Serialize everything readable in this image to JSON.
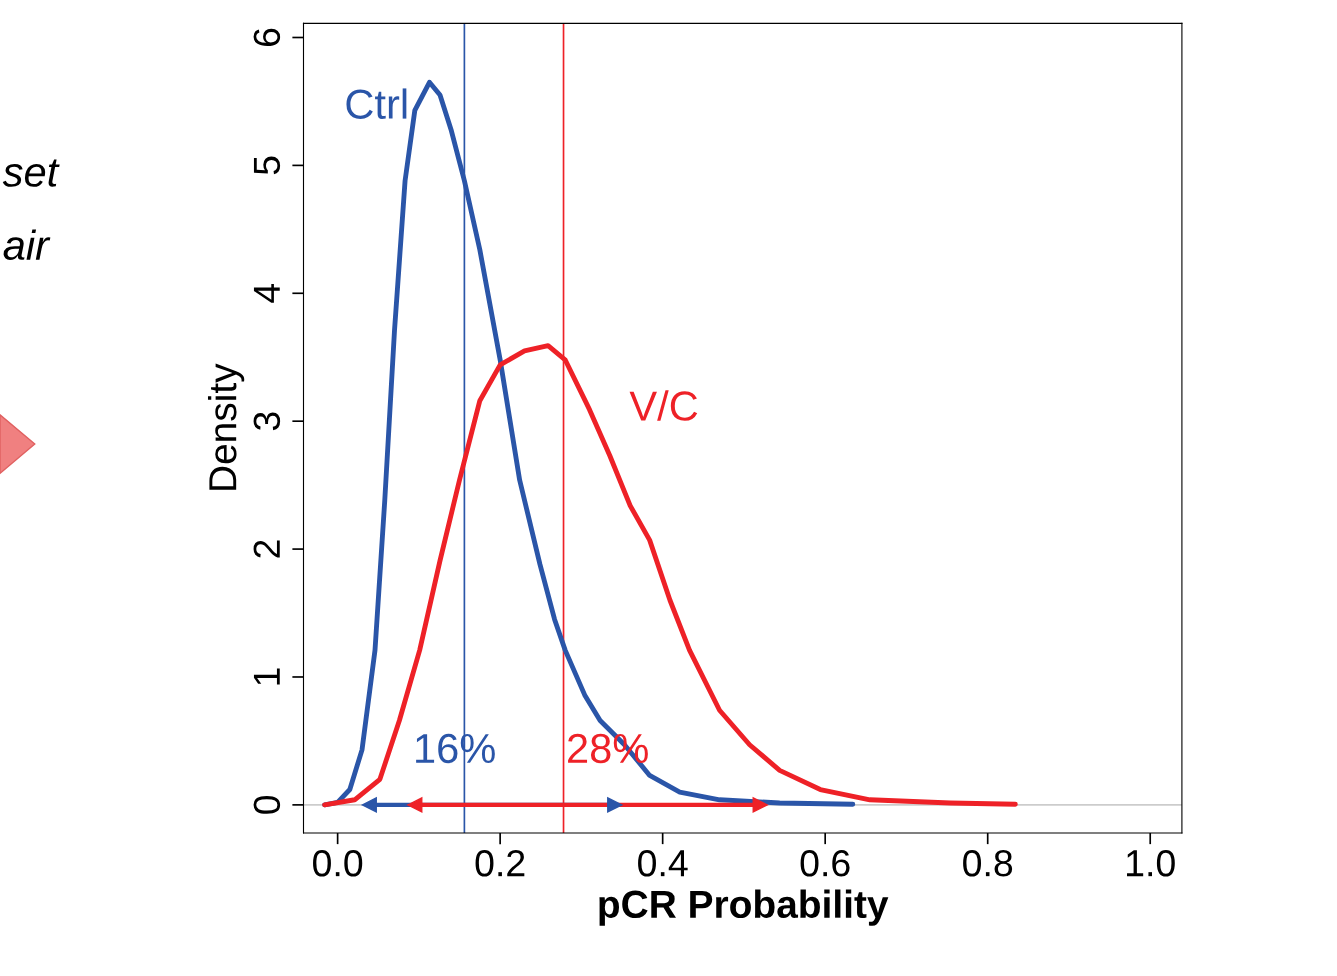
{
  "chart_data": {
    "type": "line",
    "xlabel": "pCR Probability",
    "ylabel": "Density",
    "xlim": [
      -0.042,
      1.039
    ],
    "ylim": [
      -0.22,
      6.11
    ],
    "xticks": [
      {
        "value": 0,
        "label": "0.0"
      },
      0.2,
      0.4,
      0.6,
      0.8,
      {
        "value": 1,
        "label": "1.0"
      }
    ],
    "yticks": [
      0,
      1,
      2,
      3,
      4,
      5,
      6
    ],
    "grid": false,
    "line_style": "solid",
    "marker": "none",
    "series": [
      {
        "name": "Ctrl",
        "color": "#2a55a8",
        "x": [
          -0.016,
          0,
          0.015,
          0.03,
          0.046,
          0.058,
          0.07,
          0.083,
          0.095,
          0.113,
          0.126,
          0.14,
          0.156,
          0.175,
          0.2,
          0.224,
          0.249,
          0.267,
          0.28,
          0.304,
          0.323,
          0.353,
          0.384,
          0.421,
          0.47,
          0.544,
          0.634
        ],
        "values": [
          0,
          0.02,
          0.12,
          0.43,
          1.21,
          2.38,
          3.71,
          4.88,
          5.43,
          5.65,
          5.55,
          5.27,
          4.88,
          4.34,
          3.48,
          2.54,
          1.88,
          1.45,
          1.21,
          0.86,
          0.66,
          0.47,
          0.23,
          0.1,
          0.04,
          0.015,
          0.005
        ]
      },
      {
        "name": "V/C",
        "color": "#ee2127",
        "x": [
          -0.016,
          0.021,
          0.052,
          0.076,
          0.101,
          0.126,
          0.15,
          0.175,
          0.2,
          0.23,
          0.259,
          0.28,
          0.31,
          0.335,
          0.36,
          0.384,
          0.409,
          0.433,
          0.47,
          0.507,
          0.544,
          0.594,
          0.655,
          0.754,
          0.834
        ],
        "values": [
          0,
          0.04,
          0.2,
          0.66,
          1.21,
          1.91,
          2.54,
          3.16,
          3.44,
          3.55,
          3.59,
          3.48,
          3.09,
          2.73,
          2.34,
          2.07,
          1.6,
          1.21,
          0.74,
          0.47,
          0.27,
          0.12,
          0.04,
          0.015,
          0.005
        ]
      },
      {
        "type": "line",
        "marker": "triangle",
        "color": "#2a55a8",
        "x": [
          0.039,
          0.341
        ],
        "values": [
          0,
          0
        ]
      },
      {
        "type": "line",
        "marker": "triangle",
        "color": "#ee2127",
        "x": [
          0.095,
          0.52
        ],
        "values": [
          0,
          0
        ]
      }
    ],
    "ref_lines": [
      {
        "axis": "y",
        "value": 0,
        "color": "#cccccc"
      },
      {
        "axis": "x",
        "value": 0.156,
        "color": "#2a55a8"
      },
      {
        "axis": "x",
        "value": 0.278,
        "color": "#ee2127"
      }
    ],
    "annotations": [
      "16%",
      "28%",
      "set",
      "air"
    ]
  }
}
